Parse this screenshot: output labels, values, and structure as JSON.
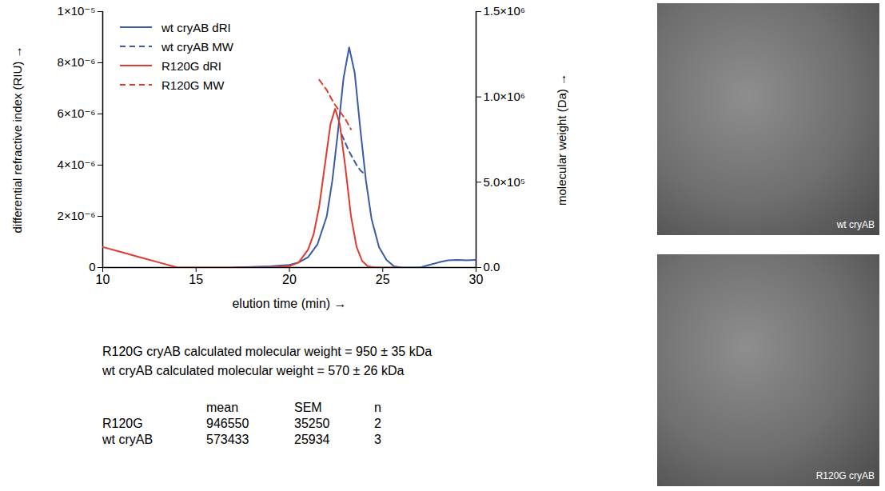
{
  "chart_data": {
    "type": "line",
    "x_label": "elution time (min)",
    "y_label": "differential refractive index (RIU)",
    "y2_label": "molecular weight (Da)",
    "xlim": [
      10,
      30
    ],
    "xticks": [
      10,
      15,
      20,
      25,
      30
    ],
    "ylim": [
      0,
      1e-05
    ],
    "yticks": [
      0,
      {
        "value": 2e-06,
        "label": "2×10⁻⁶"
      },
      {
        "value": 4e-06,
        "label": "4×10⁻⁶"
      },
      {
        "value": 6e-06,
        "label": "6×10⁻⁶"
      },
      {
        "value": 8e-06,
        "label": "8×10⁻⁶"
      },
      {
        "value": 1e-05,
        "label": "1×10⁻⁵"
      }
    ],
    "y2lim": [
      0,
      1500000
    ],
    "y2ticks": [
      {
        "value": 0,
        "label": "0.0"
      },
      {
        "value": 500000,
        "label": "5.0×10⁵"
      },
      {
        "value": 1000000,
        "label": "1.0×10⁶"
      },
      {
        "value": 1500000,
        "label": "1.5×10⁶"
      }
    ],
    "legend": "upper left",
    "series": [
      {
        "name": "wt cryAB dRI",
        "color": "#3b5ba5",
        "line_style": "solid",
        "axis": "y",
        "x": [
          17,
          18,
          19,
          20,
          20.5,
          21,
          21.5,
          22,
          22.3,
          22.6,
          22.9,
          23.2,
          23.5,
          23.8,
          24.1,
          24.4,
          24.8,
          25.2,
          25.6,
          26,
          27,
          27.5,
          28,
          28.5,
          29,
          29.5,
          30
        ],
        "values": [
          0,
          2e-08,
          5e-08,
          1e-07,
          2e-07,
          4e-07,
          9e-07,
          2e-06,
          3.4e-06,
          5.3e-06,
          7.4e-06,
          8.6e-06,
          7.6e-06,
          5.4e-06,
          3.4e-06,
          1.9e-06,
          8e-07,
          3e-07,
          5e-08,
          0,
          0,
          1e-07,
          2e-07,
          2.8e-07,
          3e-07,
          2.8e-07,
          3e-07
        ]
      },
      {
        "name": "wt cryAB MW",
        "color": "#3b5ba5",
        "line_style": "dashed",
        "axis": "y2",
        "x": [
          22.8,
          23.0,
          23.2,
          23.4,
          23.6,
          23.8,
          24.0
        ],
        "values": [
          780000,
          730000,
          680000,
          640000,
          600000,
          570000,
          550000
        ]
      },
      {
        "name": "R120G dRI",
        "color": "#e03a2f",
        "line_style": "solid",
        "axis": "y",
        "x": [
          10,
          11,
          12,
          13,
          14,
          15,
          16,
          17,
          18,
          19,
          19.5,
          20,
          20.5,
          21,
          21.3,
          21.6,
          21.9,
          22.2,
          22.45,
          22.7,
          23,
          23.3,
          23.6,
          23.9,
          24.2,
          24.6,
          25,
          26
        ],
        "values": [
          8e-07,
          6e-07,
          4e-07,
          2e-07,
          0,
          0,
          0,
          0,
          0,
          0,
          2e-08,
          5e-08,
          2e-07,
          7e-07,
          1.3e-06,
          2.4e-06,
          4e-06,
          5.6e-06,
          6.2e-06,
          5.6e-06,
          3.9e-06,
          2e-06,
          8e-07,
          2.5e-07,
          5e-08,
          0,
          0,
          0
        ]
      },
      {
        "name": "R120G MW",
        "color": "#e03a2f",
        "line_style": "dashed",
        "axis": "y2",
        "x": [
          21.6,
          21.8,
          22.0,
          22.2,
          22.4,
          22.6,
          22.8,
          23.0,
          23.2,
          23.3
        ],
        "values": [
          1100000,
          1070000,
          1040000,
          1000000,
          960000,
          930000,
          900000,
          870000,
          830000,
          810000
        ]
      }
    ]
  },
  "text_lines": [
    "R120G cryAB calculated molecular weight = 950 ± 35 kDa",
    "wt cryAB calculated molecular weight = 570 ± 26 kDa"
  ],
  "table": {
    "columns": [
      "mean",
      "SEM",
      "n"
    ],
    "rows": [
      {
        "label": "R120G",
        "values": [
          946550,
          35250,
          2
        ]
      },
      {
        "label": "wt cryAB",
        "values": [
          573433,
          25934,
          3
        ]
      }
    ]
  },
  "images": [
    {
      "label": "wt cryAB"
    },
    {
      "label": "R120G cryAB"
    }
  ]
}
